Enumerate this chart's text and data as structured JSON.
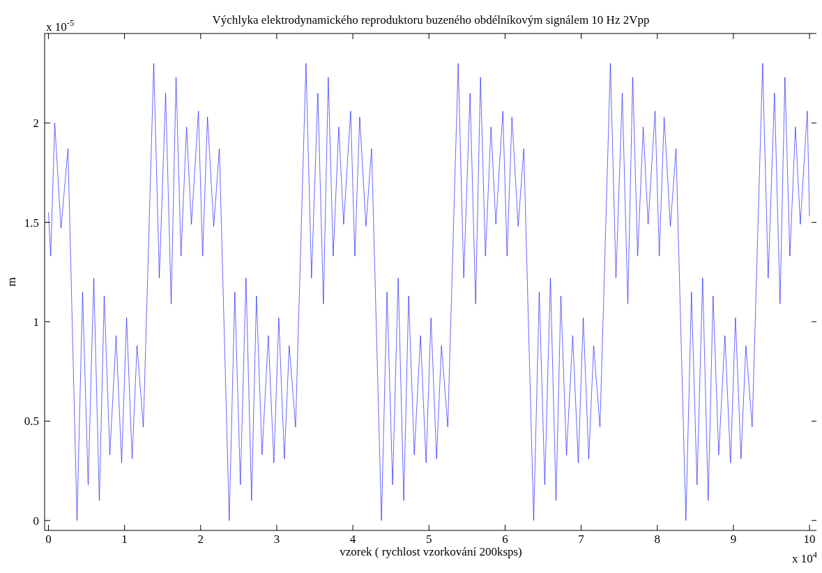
{
  "chart_data": {
    "type": "line",
    "title": "Výchlyka elektrodynamického reproduktoru buzeného obdélníkovým signálem 10 Hz 2Vpp",
    "xlabel": "vzorek ( rychlost vzorkování 200ksps)",
    "ylabel": "m",
    "annotations": [
      "x 10$^{-5}$",
      "x 10$^{4}$"
    ],
    "xlim": [
      -0.05,
      10.1
    ],
    "xticks": [
      0,
      1,
      2,
      3,
      4,
      5,
      6,
      7,
      8,
      9,
      10
    ],
    "ylim": [
      -0.05,
      2.45
    ],
    "yticks": [
      0,
      0.5,
      1,
      1.5,
      2
    ],
    "grid": false,
    "marker": "none",
    "line_style": "solid",
    "series": [
      {
        "color": "#0000ff",
        "x": [
          0,
          0.03,
          0.083,
          0.165,
          0.257,
          0.376,
          0.449,
          0.522,
          0.596,
          0.669,
          0.733,
          0.807,
          0.889,
          0.962,
          1.027,
          1.1,
          1.164,
          1.247,
          1.384,
          1.457,
          1.54,
          1.613,
          1.677,
          1.742,
          1.815,
          1.879,
          1.971,
          2.026,
          2.09,
          2.172,
          2.246,
          2.376,
          2.449,
          2.522,
          2.596,
          2.669,
          2.733,
          2.807,
          2.889,
          2.962,
          3.027,
          3.1,
          3.164,
          3.247,
          3.384,
          3.457,
          3.54,
          3.613,
          3.677,
          3.742,
          3.815,
          3.879,
          3.971,
          4.026,
          4.09,
          4.172,
          4.246,
          4.376,
          4.449,
          4.522,
          4.596,
          4.669,
          4.733,
          4.807,
          4.889,
          4.962,
          5.027,
          5.1,
          5.164,
          5.247,
          5.384,
          5.457,
          5.54,
          5.613,
          5.677,
          5.742,
          5.815,
          5.879,
          5.971,
          6.026,
          6.09,
          6.172,
          6.246,
          6.376,
          6.449,
          6.522,
          6.596,
          6.669,
          6.733,
          6.807,
          6.889,
          6.962,
          7.027,
          7.1,
          7.164,
          7.247,
          7.384,
          7.457,
          7.54,
          7.613,
          7.677,
          7.742,
          7.815,
          7.879,
          7.971,
          8.026,
          8.09,
          8.172,
          8.246,
          8.376,
          8.449,
          8.522,
          8.596,
          8.669,
          8.733,
          8.807,
          8.889,
          8.962,
          9.027,
          9.1,
          9.164,
          9.247,
          9.384,
          9.457,
          9.54,
          9.613,
          9.677,
          9.742,
          9.815,
          9.879,
          9.971,
          10
        ],
        "values": [
          1.55,
          1.33,
          2.0,
          1.47,
          1.87,
          0,
          1.15,
          0.18,
          1.22,
          0.1,
          1.13,
          0.33,
          0.93,
          0.29,
          1.02,
          0.31,
          0.88,
          0.47,
          2.3,
          1.22,
          2.15,
          1.09,
          2.23,
          1.33,
          1.98,
          1.49,
          2.06,
          1.33,
          2.03,
          1.48,
          1.87,
          0,
          1.15,
          0.18,
          1.22,
          0.1,
          1.13,
          0.33,
          0.93,
          0.29,
          1.02,
          0.31,
          0.88,
          0.47,
          2.3,
          1.22,
          2.15,
          1.09,
          2.23,
          1.33,
          1.98,
          1.49,
          2.06,
          1.33,
          2.03,
          1.48,
          1.87,
          0,
          1.15,
          0.18,
          1.22,
          0.1,
          1.13,
          0.33,
          0.93,
          0.29,
          1.02,
          0.31,
          0.88,
          0.47,
          2.3,
          1.22,
          2.15,
          1.09,
          2.23,
          1.33,
          1.98,
          1.49,
          2.06,
          1.33,
          2.03,
          1.48,
          1.87,
          0,
          1.15,
          0.18,
          1.22,
          0.1,
          1.13,
          0.33,
          0.93,
          0.29,
          1.02,
          0.31,
          0.88,
          0.47,
          2.3,
          1.22,
          2.15,
          1.09,
          2.23,
          1.33,
          1.98,
          1.49,
          2.06,
          1.33,
          2.03,
          1.48,
          1.87,
          0,
          1.15,
          0.18,
          1.22,
          0.1,
          1.13,
          0.33,
          0.93,
          0.29,
          1.02,
          0.31,
          0.88,
          0.47,
          2.3,
          1.22,
          2.15,
          1.09,
          2.23,
          1.33,
          1.98,
          1.49,
          2.06,
          1.53
        ]
      }
    ]
  }
}
